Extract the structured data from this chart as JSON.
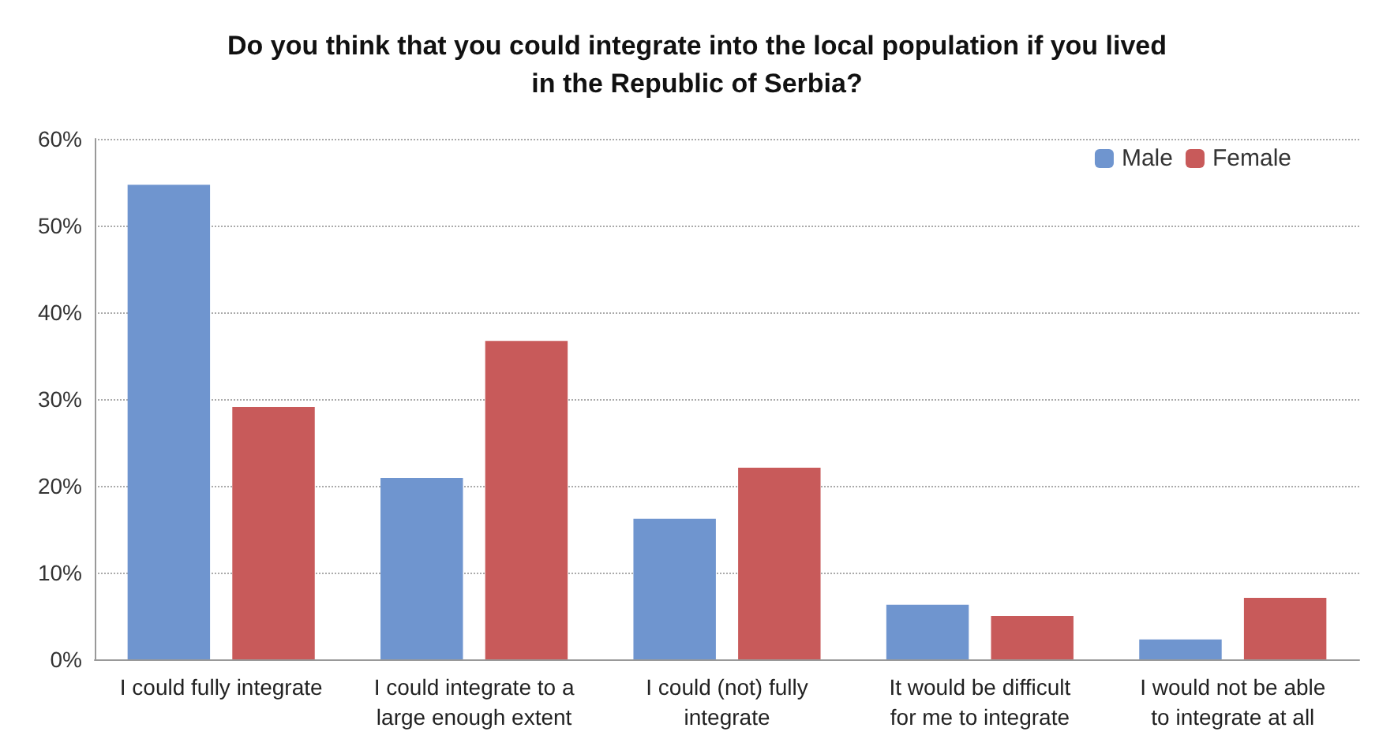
{
  "chart_data": {
    "type": "bar",
    "title": "Do you think that you could integrate into the local population if you lived\nin the Republic of Serbia?",
    "categories": [
      "I could fully integrate",
      "I could integrate to a\nlarge enough extent",
      "I could (not) fully\nintegrate",
      "It would be difficult\nfor me to integrate",
      "I would not be able\nto integrate at all"
    ],
    "series": [
      {
        "name": "Male",
        "color": "#6f95cf",
        "values": [
          54.7,
          20.9,
          16.2,
          6.3,
          2.3
        ]
      },
      {
        "name": "Female",
        "color": "#c85a5a",
        "values": [
          29.1,
          36.7,
          22.1,
          5.0,
          7.1
        ]
      }
    ],
    "ylim": [
      0,
      60
    ],
    "yticks": [
      {
        "value": 0,
        "label": "0%"
      },
      {
        "value": 10,
        "label": "10%"
      },
      {
        "value": 20,
        "label": "20%"
      },
      {
        "value": 30,
        "label": "30%"
      },
      {
        "value": 40,
        "label": "40%"
      },
      {
        "value": 50,
        "label": "50%"
      },
      {
        "value": 60,
        "label": "60%"
      }
    ],
    "grid": "y",
    "legend": "top right"
  }
}
